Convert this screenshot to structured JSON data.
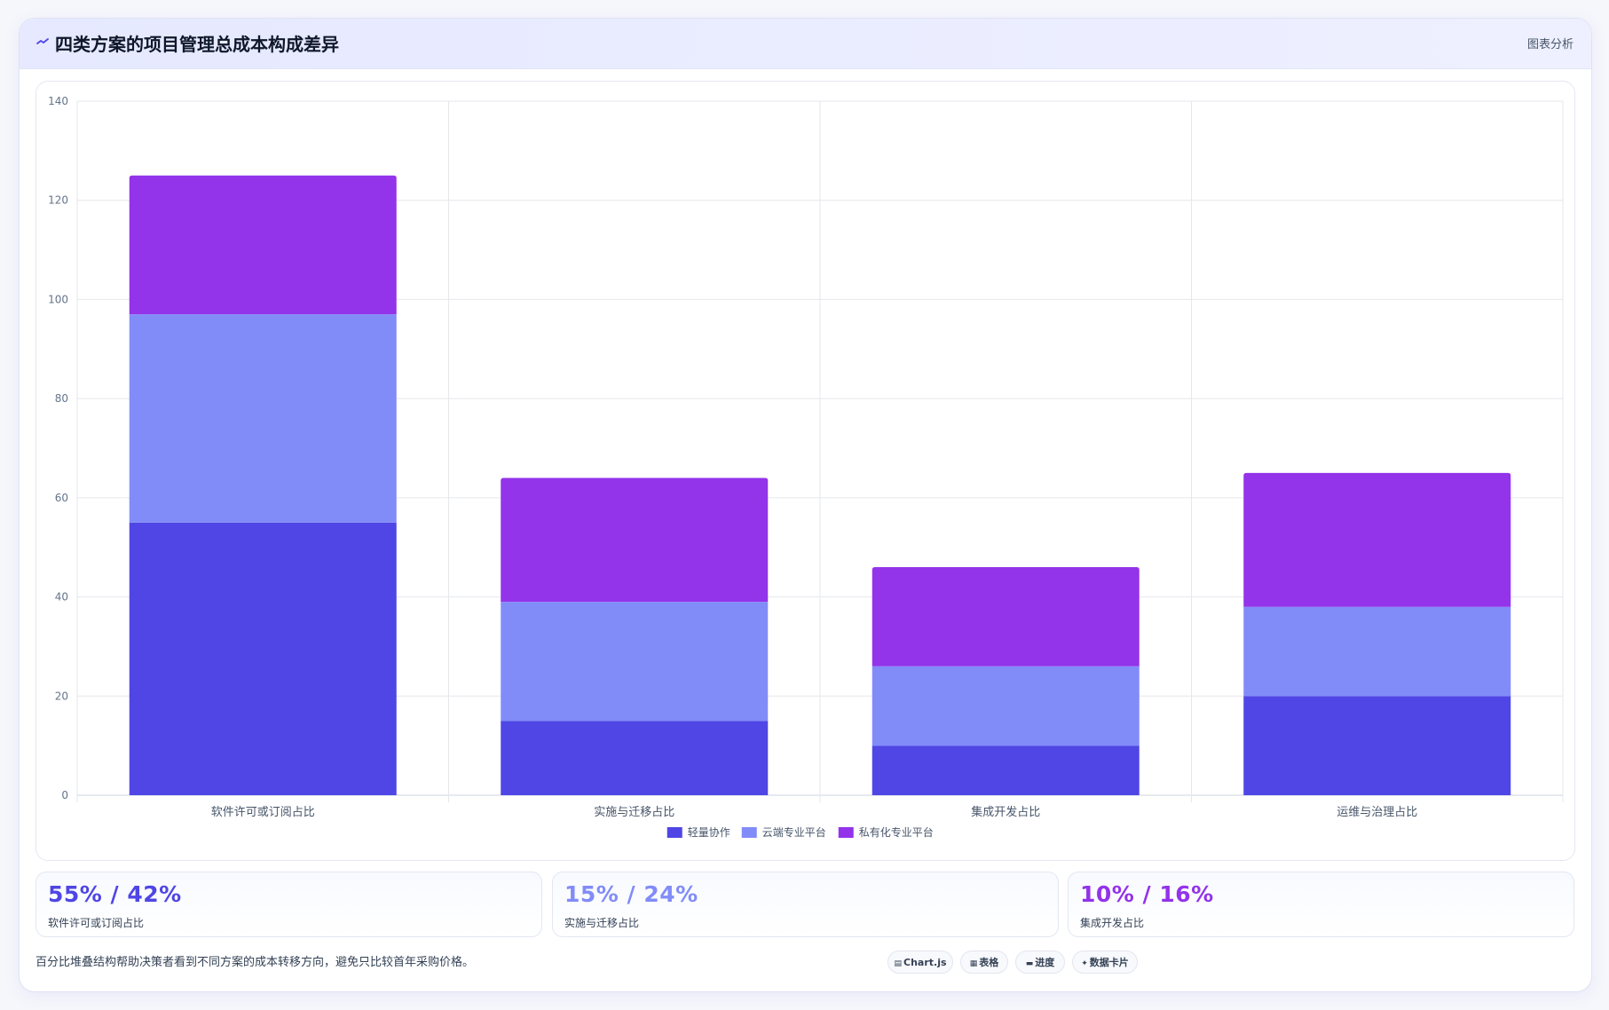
{
  "header": {
    "title": "四类方案的项目管理总成本构成差异",
    "tag": "图表分析",
    "icon": "chart-trend-icon"
  },
  "chart_data": {
    "type": "bar",
    "stacked": true,
    "categories": [
      "软件许可或订阅占比",
      "实施与迁移占比",
      "集成开发占比",
      "运维与治理占比"
    ],
    "series": [
      {
        "name": "轻量协作",
        "values": [
          55,
          15,
          10,
          20
        ],
        "color": "#4f46e5"
      },
      {
        "name": "云端专业平台",
        "values": [
          42,
          24,
          16,
          18
        ],
        "color": "#818cf8"
      },
      {
        "name": "私有化专业平台",
        "values": [
          28,
          25,
          20,
          27
        ],
        "color": "#9333ea"
      }
    ],
    "ylim": [
      0,
      140
    ],
    "yticks": [
      0,
      20,
      40,
      60,
      80,
      100,
      120,
      140
    ],
    "xlabel": "",
    "ylabel": "",
    "grid": true,
    "legend": "bottom-center"
  },
  "stats": [
    {
      "value": "55% / 42%",
      "label": "软件许可或订阅占比",
      "color": "#4f46e5"
    },
    {
      "value": "15% / 24%",
      "label": "实施与迁移占比",
      "color": "#818cf8"
    },
    {
      "value": "10% / 16%",
      "label": "集成开发占比",
      "color": "#9333ea"
    }
  ],
  "footnote": "百分比堆叠结构帮助决策者看到不同方案的成本转移方向，避免只比较首年采购价格。",
  "chips": [
    {
      "label": "Chart.js",
      "icon": "chart-icon"
    },
    {
      "label": "表格",
      "icon": "table-icon"
    },
    {
      "label": "进度",
      "icon": "progress-icon"
    },
    {
      "label": "数据卡片",
      "icon": "sparkle-icon"
    }
  ]
}
